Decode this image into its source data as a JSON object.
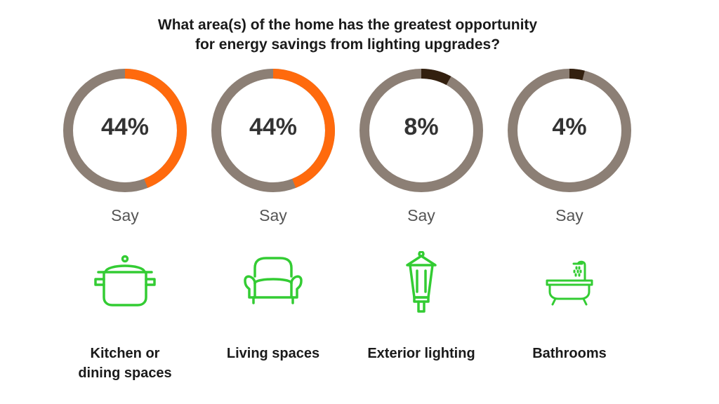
{
  "title_lines": [
    "What area(s) of the home has the greatest opportunity",
    "for energy savings from lighting upgrades?"
  ],
  "colors": {
    "track": "#8c7f75",
    "highlight_orange": "#ff6a0d",
    "highlight_dark": "#33200f",
    "icon_green": "#33cc33"
  },
  "chart_data": {
    "type": "donut",
    "items": [
      {
        "percent_label": "44%",
        "value": 44,
        "say": "Say",
        "label_lines": [
          "Kitchen or",
          "dining spaces"
        ],
        "icon": "cooking-pot-icon",
        "highlight": "#ff6a0d"
      },
      {
        "percent_label": "44%",
        "value": 44,
        "say": "Say",
        "label_lines": [
          "Living spaces"
        ],
        "icon": "armchair-icon",
        "highlight": "#ff6a0d"
      },
      {
        "percent_label": "8%",
        "value": 8,
        "say": "Say",
        "label_lines": [
          "Exterior lighting"
        ],
        "icon": "lantern-icon",
        "highlight": "#33200f"
      },
      {
        "percent_label": "4%",
        "value": 4,
        "say": "Say",
        "label_lines": [
          "Bathrooms"
        ],
        "icon": "bathtub-icon",
        "highlight": "#33200f"
      }
    ]
  }
}
